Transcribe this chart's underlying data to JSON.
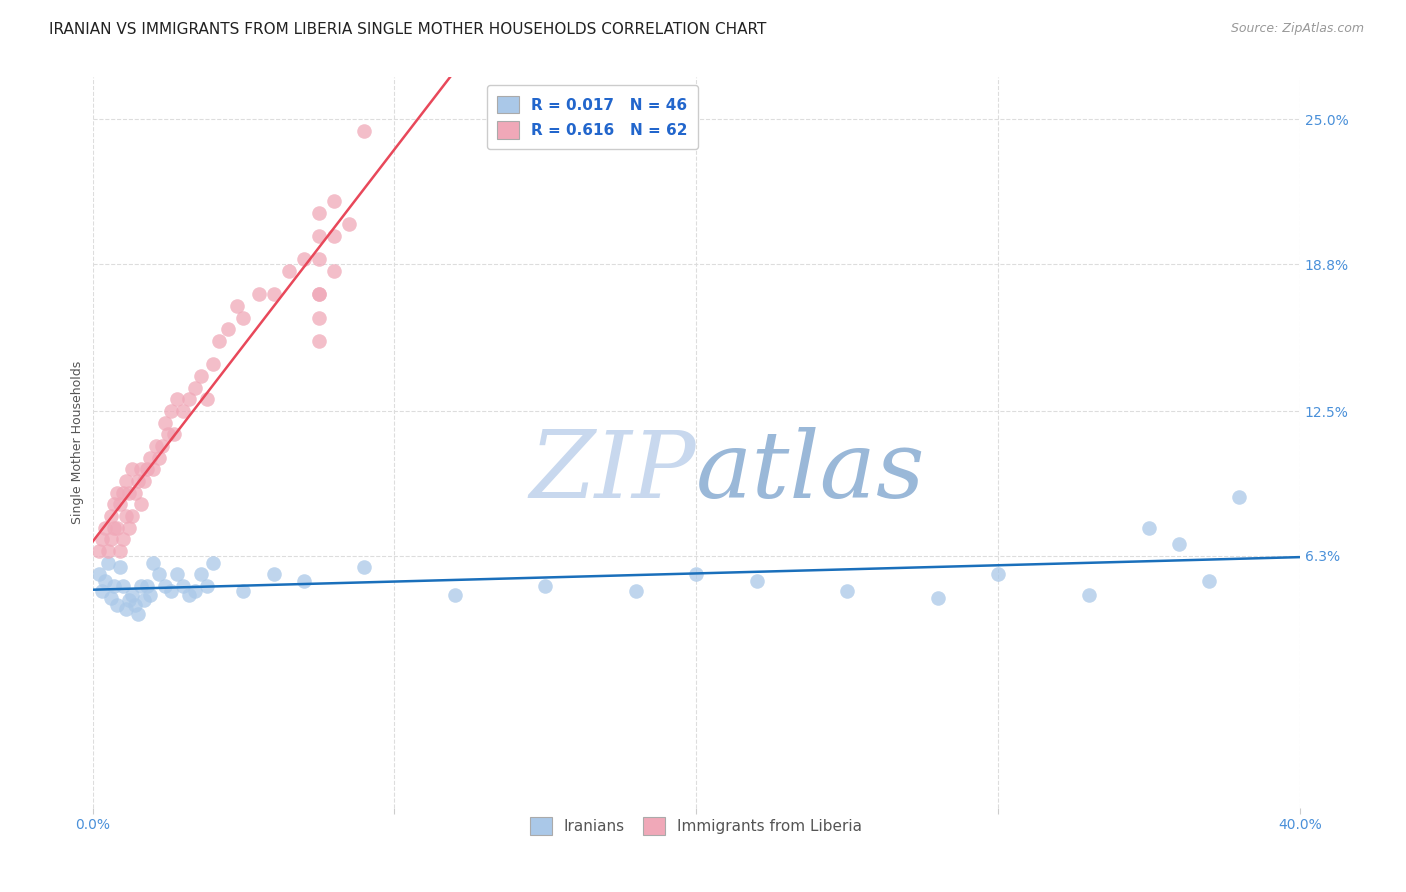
{
  "title": "IRANIAN VS IMMIGRANTS FROM LIBERIA SINGLE MOTHER HOUSEHOLDS CORRELATION CHART",
  "source": "Source: ZipAtlas.com",
  "ylabel": "Single Mother Households",
  "ytick_labels": [
    "25.0%",
    "18.8%",
    "12.5%",
    "6.3%"
  ],
  "ytick_vals": [
    0.25,
    0.188,
    0.125,
    0.063
  ],
  "xmin": 0.0,
  "xmax": 0.4,
  "ymin": -0.045,
  "ymax": 0.268,
  "scatter_color_iranian": "#aac8e8",
  "scatter_color_liberia": "#f0a8b8",
  "line_color_iranian": "#1a6fbb",
  "line_color_liberia": "#e8485a",
  "watermark_zip_color": "#c8d8ee",
  "watermark_atlas_color": "#9ab8d8",
  "background_color": "#ffffff",
  "grid_color": "#dddddd",
  "title_fontsize": 11,
  "source_fontsize": 9,
  "axis_label_fontsize": 9,
  "tick_fontsize": 10,
  "legend_fontsize": 11,
  "watermark_fontsize": 68,
  "iranians_x": [
    0.002,
    0.003,
    0.004,
    0.005,
    0.006,
    0.007,
    0.008,
    0.009,
    0.01,
    0.011,
    0.012,
    0.013,
    0.014,
    0.015,
    0.016,
    0.017,
    0.018,
    0.019,
    0.02,
    0.022,
    0.024,
    0.026,
    0.028,
    0.03,
    0.032,
    0.034,
    0.036,
    0.038,
    0.04,
    0.05,
    0.06,
    0.07,
    0.09,
    0.12,
    0.15,
    0.18,
    0.2,
    0.22,
    0.25,
    0.28,
    0.3,
    0.33,
    0.35,
    0.36,
    0.37,
    0.38
  ],
  "iranians_y": [
    0.055,
    0.048,
    0.052,
    0.06,
    0.045,
    0.05,
    0.042,
    0.058,
    0.05,
    0.04,
    0.044,
    0.046,
    0.042,
    0.038,
    0.05,
    0.044,
    0.05,
    0.046,
    0.06,
    0.055,
    0.05,
    0.048,
    0.055,
    0.05,
    0.046,
    0.048,
    0.055,
    0.05,
    0.06,
    0.048,
    0.055,
    0.052,
    0.058,
    0.046,
    0.05,
    0.048,
    0.055,
    0.052,
    0.048,
    0.045,
    0.055,
    0.046,
    0.075,
    0.068,
    0.052,
    0.088
  ],
  "liberia_x": [
    0.002,
    0.003,
    0.004,
    0.005,
    0.006,
    0.006,
    0.007,
    0.007,
    0.008,
    0.008,
    0.009,
    0.009,
    0.01,
    0.01,
    0.011,
    0.011,
    0.012,
    0.012,
    0.013,
    0.013,
    0.014,
    0.015,
    0.016,
    0.016,
    0.017,
    0.018,
    0.019,
    0.02,
    0.021,
    0.022,
    0.023,
    0.024,
    0.025,
    0.026,
    0.027,
    0.028,
    0.03,
    0.032,
    0.034,
    0.036,
    0.038,
    0.04,
    0.042,
    0.045,
    0.048,
    0.05,
    0.055,
    0.06,
    0.065,
    0.07,
    0.075,
    0.075,
    0.075,
    0.075,
    0.075,
    0.075,
    0.075,
    0.08,
    0.08,
    0.08,
    0.085,
    0.09
  ],
  "liberia_y": [
    0.065,
    0.07,
    0.075,
    0.065,
    0.07,
    0.08,
    0.075,
    0.085,
    0.075,
    0.09,
    0.065,
    0.085,
    0.07,
    0.09,
    0.08,
    0.095,
    0.075,
    0.09,
    0.08,
    0.1,
    0.09,
    0.095,
    0.085,
    0.1,
    0.095,
    0.1,
    0.105,
    0.1,
    0.11,
    0.105,
    0.11,
    0.12,
    0.115,
    0.125,
    0.115,
    0.13,
    0.125,
    0.13,
    0.135,
    0.14,
    0.13,
    0.145,
    0.155,
    0.16,
    0.17,
    0.165,
    0.175,
    0.175,
    0.185,
    0.19,
    0.19,
    0.2,
    0.21,
    0.175,
    0.155,
    0.165,
    0.175,
    0.185,
    0.2,
    0.215,
    0.205,
    0.245
  ]
}
